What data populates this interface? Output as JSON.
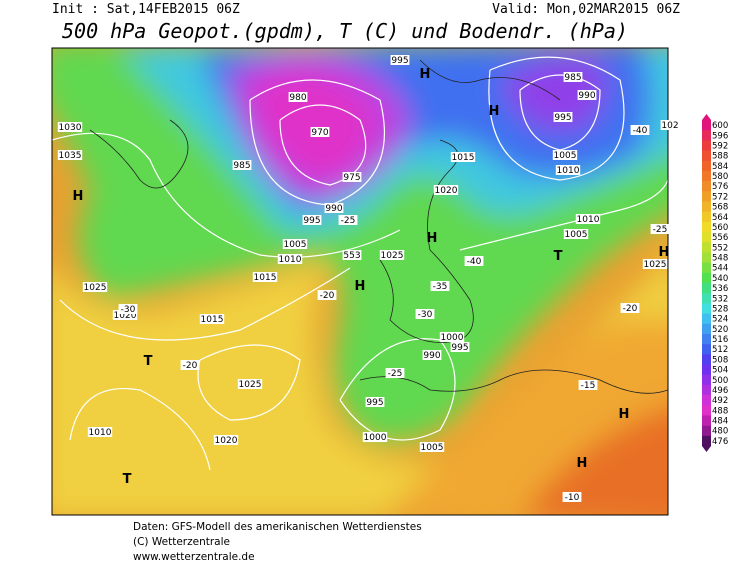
{
  "header": {
    "init": "Init : Sat,14FEB2015 06Z",
    "valid": "Valid: Mon,02MAR2015 06Z",
    "title": "500 hPa Geopot.(gpdm), T (C) und Bodendr. (hPa)"
  },
  "footer": [
    "Daten: GFS-Modell des amerikanischen Wetterdienstes",
    "(C) Wetterzentrale",
    "www.wetterzentrale.de"
  ],
  "colorbar": {
    "ticks": [
      600,
      596,
      592,
      588,
      584,
      580,
      576,
      572,
      568,
      564,
      560,
      556,
      552,
      548,
      544,
      540,
      536,
      532,
      528,
      524,
      520,
      516,
      512,
      508,
      504,
      500,
      496,
      492,
      488,
      484,
      480,
      476
    ],
    "colors": [
      "#e0147c",
      "#e82a5a",
      "#ec3c3c",
      "#ee5030",
      "#f06428",
      "#f07828",
      "#f08c28",
      "#f0a028",
      "#f0b428",
      "#f0c828",
      "#f0dc28",
      "#e0e028",
      "#c0e030",
      "#a0e038",
      "#78e040",
      "#50e050",
      "#40e080",
      "#40e0b0",
      "#40e0e0",
      "#40c0f0",
      "#40a0f0",
      "#4080f0",
      "#4060f0",
      "#5040f0",
      "#7030f0",
      "#9030e8",
      "#b030e0",
      "#d030d8",
      "#e030c8",
      "#c020b0",
      "#901890",
      "#501060"
    ]
  },
  "map_labels": [
    "1030",
    "1035",
    "H",
    "1025",
    "1020",
    "1015",
    "T",
    "1010",
    "T",
    "1025",
    "1020",
    "1015",
    "1010",
    "1005",
    "995",
    "990",
    "985",
    "980",
    "975",
    "970",
    "H",
    "995",
    "1015",
    "1020",
    "H",
    "1025",
    "H",
    "985",
    "990",
    "995",
    "1005",
    "1010",
    "1010",
    "1005",
    "T",
    "H",
    "1025",
    "H",
    "H",
    "1000",
    "995",
    "990",
    "995",
    "1000",
    "1005",
    "H",
    "-20",
    "-25",
    "-30",
    "-35",
    "-40",
    "-25",
    "-15",
    "-10",
    "-20",
    "-25",
    "-30",
    "-20",
    "553",
    "102",
    "-40"
  ]
}
